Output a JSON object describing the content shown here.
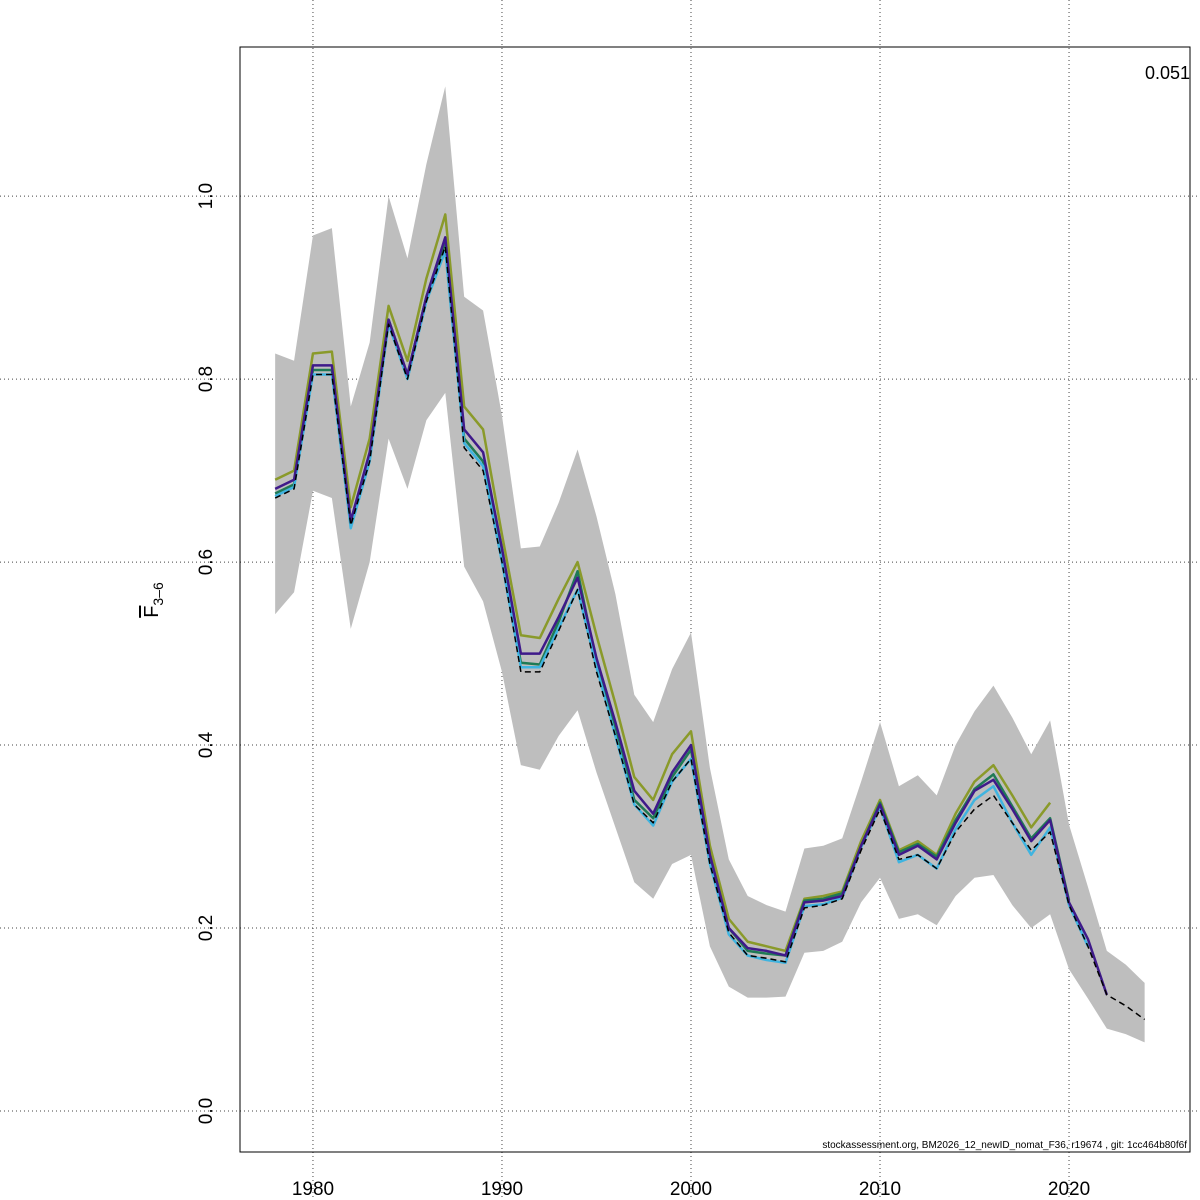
{
  "chart_data": {
    "type": "line",
    "ylabel": {
      "text": "F",
      "subscript": "3–6"
    },
    "annotation": "0.051",
    "footnote": "stockassessment.org, BM2026_12_newID_nomat_F36, r19674 , git: 1cc464b80f6f",
    "x": [
      1978,
      1979,
      1980,
      1981,
      1982,
      1983,
      1984,
      1985,
      1986,
      1987,
      1988,
      1989,
      1990,
      1991,
      1992,
      1993,
      1994,
      1995,
      1996,
      1997,
      1998,
      1999,
      2000,
      2001,
      2002,
      2003,
      2004,
      2005,
      2006,
      2007,
      2008,
      2009,
      2010,
      2011,
      2012,
      2013,
      2014,
      2015,
      2016,
      2017,
      2018,
      2019,
      2020,
      2021,
      2022,
      2023,
      2024
    ],
    "band": {
      "color": "#bebebe",
      "low": [
        0.543,
        0.567,
        0.678,
        0.67,
        0.527,
        0.6,
        0.735,
        0.68,
        0.755,
        0.785,
        0.595,
        0.557,
        0.48,
        0.378,
        0.373,
        0.41,
        0.438,
        0.37,
        0.31,
        0.25,
        0.232,
        0.27,
        0.28,
        0.18,
        0.136,
        0.124,
        0.124,
        0.125,
        0.173,
        0.175,
        0.185,
        0.228,
        0.255,
        0.21,
        0.215,
        0.203,
        0.235,
        0.255,
        0.258,
        0.225,
        0.2,
        0.215,
        0.155,
        0.123,
        0.09,
        0.084,
        0.075
      ],
      "high": [
        0.828,
        0.82,
        0.957,
        0.965,
        0.77,
        0.84,
        1.0,
        0.932,
        1.035,
        1.12,
        0.89,
        0.875,
        0.76,
        0.615,
        0.617,
        0.665,
        0.723,
        0.65,
        0.565,
        0.455,
        0.425,
        0.483,
        0.523,
        0.375,
        0.275,
        0.235,
        0.225,
        0.218,
        0.287,
        0.29,
        0.298,
        0.36,
        0.425,
        0.355,
        0.367,
        0.345,
        0.4,
        0.437,
        0.465,
        0.43,
        0.39,
        0.427,
        0.313,
        0.245,
        0.175,
        0.16,
        0.14
      ]
    },
    "series": [
      {
        "color": "#8a9a2a",
        "values": [
          0.69,
          0.7,
          0.828,
          0.83,
          0.66,
          0.735,
          0.88,
          0.82,
          0.91,
          0.98,
          0.77,
          0.745,
          0.63,
          0.52,
          0.517,
          0.56,
          0.6,
          0.52,
          0.445,
          0.365,
          0.34,
          0.39,
          0.415,
          0.29,
          0.21,
          0.185,
          0.18,
          0.175,
          0.232,
          0.235,
          0.24,
          0.295,
          0.34,
          0.285,
          0.295,
          0.28,
          0.325,
          0.36,
          0.378,
          0.345,
          0.31,
          0.337,
          null,
          null,
          null,
          null,
          null
        ]
      },
      {
        "color": "#1f7a55",
        "values": [
          0.675,
          0.685,
          0.81,
          0.81,
          0.645,
          0.715,
          0.865,
          0.805,
          0.89,
          0.95,
          0.735,
          0.71,
          0.605,
          0.49,
          0.488,
          0.535,
          0.59,
          0.49,
          0.42,
          0.34,
          0.32,
          0.365,
          0.395,
          0.275,
          0.2,
          0.175,
          0.172,
          0.17,
          0.23,
          0.232,
          0.238,
          0.29,
          0.337,
          0.283,
          0.292,
          0.278,
          0.318,
          0.352,
          0.368,
          0.333,
          0.298,
          0.32,
          0.23,
          null,
          null,
          null,
          null
        ]
      },
      {
        "color": "#3fb4e0",
        "values": [
          0.672,
          0.682,
          0.805,
          0.805,
          0.637,
          0.71,
          0.86,
          0.8,
          0.885,
          0.94,
          0.73,
          0.705,
          0.6,
          0.485,
          0.485,
          0.528,
          0.57,
          0.485,
          0.41,
          0.335,
          0.312,
          0.36,
          0.385,
          0.27,
          0.193,
          0.17,
          0.165,
          0.162,
          0.224,
          0.226,
          0.233,
          0.288,
          0.332,
          0.272,
          0.28,
          0.265,
          0.308,
          0.34,
          0.355,
          0.315,
          0.28,
          0.31,
          0.225,
          0.18,
          null,
          null,
          null
        ]
      },
      {
        "color": "#3f1a8a",
        "values": [
          0.68,
          0.69,
          0.815,
          0.815,
          0.645,
          0.72,
          0.865,
          0.805,
          0.89,
          0.955,
          0.745,
          0.72,
          0.615,
          0.5,
          0.5,
          0.54,
          0.583,
          0.495,
          0.425,
          0.35,
          0.325,
          0.37,
          0.4,
          0.28,
          0.2,
          0.178,
          0.175,
          0.17,
          0.228,
          0.23,
          0.235,
          0.29,
          0.335,
          0.28,
          0.29,
          0.275,
          0.315,
          0.35,
          0.362,
          0.33,
          0.295,
          0.318,
          0.228,
          0.188,
          0.127,
          null,
          null
        ]
      },
      {
        "color": "#000000",
        "dashed": true,
        "values": [
          0.67,
          0.68,
          0.805,
          0.805,
          0.64,
          0.71,
          0.86,
          0.8,
          0.885,
          0.945,
          0.725,
          0.7,
          0.6,
          0.48,
          0.48,
          0.525,
          0.57,
          0.48,
          0.41,
          0.335,
          0.315,
          0.36,
          0.385,
          0.27,
          0.195,
          0.17,
          0.167,
          0.163,
          0.222,
          0.225,
          0.232,
          0.285,
          0.33,
          0.275,
          0.28,
          0.265,
          0.305,
          0.33,
          0.345,
          0.315,
          0.285,
          0.305,
          0.225,
          0.18,
          0.127,
          0.115,
          0.1
        ]
      }
    ],
    "xlim": [
      1976.14,
      2026.4
    ],
    "ylim": [
      -0.0448,
      1.163
    ],
    "xticks": [
      1980,
      1990,
      2000,
      2010,
      2020
    ],
    "yticks": [
      {
        "value": 0,
        "label": "0.0"
      },
      0.2,
      0.4,
      0.6,
      0.8,
      {
        "value": 1,
        "label": "1.0"
      }
    ],
    "grid": true
  }
}
